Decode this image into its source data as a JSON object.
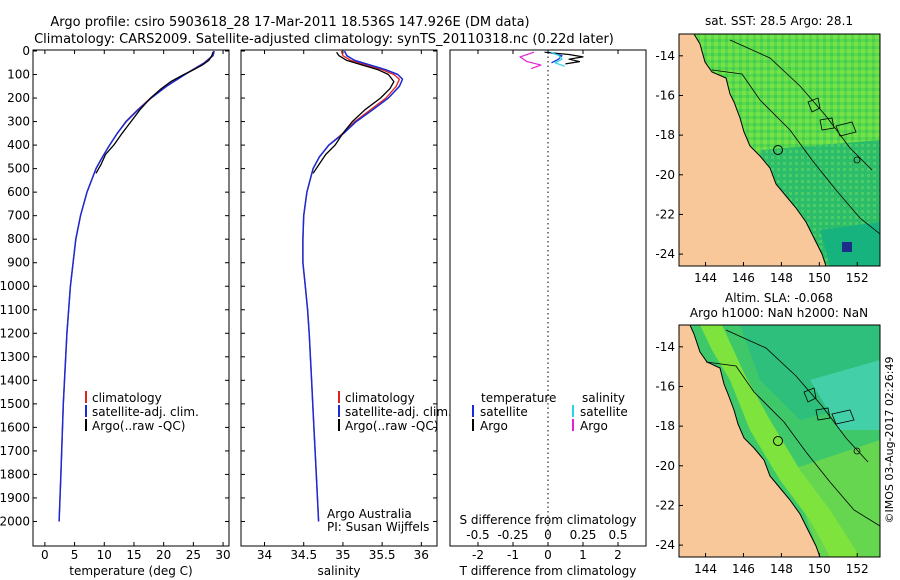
{
  "header": {
    "title_line1": "Argo profile: csiro 5903618_28 17-Mar-2011 18.536S 147.926E (DM data)",
    "title_line2": "Climatology: CARS2009. Satellite-adjusted climatology: synTS_20110318.nc (0.22d later)"
  },
  "footer": {
    "stamp": "©IMOS 03-Aug-2017 02:26:49"
  },
  "colors": {
    "clim": "#e0221e",
    "sat": "#1a2bd6",
    "argo": "#000000",
    "sat_sal": "#25d7e8",
    "argo_sal": "#e620d8",
    "land": "#f8c89a",
    "sea_dark": "#18b860",
    "sea_light": "#66e048",
    "coastline": "#000000"
  },
  "chart_data": [
    {
      "id": "temperature",
      "type": "line",
      "xlabel": "temperature (deg C)",
      "ylabel": "",
      "xlim": [
        -2,
        31
      ],
      "ylim": [
        2100,
        0
      ],
      "xticks": [
        0,
        5,
        10,
        15,
        20,
        25,
        30
      ],
      "yticks": [
        0,
        100,
        200,
        300,
        400,
        500,
        600,
        700,
        800,
        900,
        1000,
        1100,
        1200,
        1300,
        1400,
        1500,
        1600,
        1700,
        1800,
        1900,
        2000
      ],
      "legend": [
        "climatology",
        "satellite-adj. clim.",
        "Argo(..raw -QC)"
      ],
      "series": [
        {
          "name": "climatology",
          "color": "#e0221e",
          "width": 1.3,
          "depth": [
            0,
            20,
            50,
            100,
            150,
            200,
            250,
            300,
            350,
            400,
            450,
            500,
            600,
            700,
            800,
            1000,
            1200,
            1500,
            1800,
            2000
          ],
          "values": [
            28.4,
            28.2,
            26.8,
            23.5,
            20.4,
            17.8,
            15.6,
            13.6,
            12.2,
            10.9,
            9.7,
            8.6,
            7.1,
            6.0,
            5.2,
            4.3,
            3.7,
            3.1,
            2.7,
            2.4
          ]
        },
        {
          "name": "satellite-adj. clim.",
          "color": "#1a2bd6",
          "width": 1.5,
          "depth": [
            0,
            20,
            50,
            100,
            150,
            200,
            250,
            300,
            350,
            400,
            450,
            500,
            600,
            700,
            800,
            1000,
            1200,
            1500,
            1800,
            2000
          ],
          "values": [
            28.5,
            28.3,
            26.9,
            23.6,
            20.5,
            17.9,
            15.7,
            13.7,
            12.2,
            10.9,
            9.7,
            8.6,
            7.1,
            6.0,
            5.2,
            4.3,
            3.7,
            3.1,
            2.7,
            2.4
          ]
        },
        {
          "name": "Argo(..raw -QC)",
          "color": "#000000",
          "width": 1.3,
          "depth": [
            5,
            20,
            40,
            60,
            80,
            100,
            130,
            160,
            200,
            250,
            300,
            350,
            400,
            440,
            480,
            520
          ],
          "values": [
            28.3,
            28.1,
            27.6,
            26.5,
            25.0,
            23.4,
            21.2,
            19.6,
            17.8,
            16.0,
            14.5,
            13.0,
            11.6,
            10.2,
            9.5,
            8.6
          ]
        }
      ]
    },
    {
      "id": "salinity",
      "type": "line",
      "xlabel": "salinity",
      "xlim": [
        33.7,
        36.2
      ],
      "ylim": [
        2100,
        0
      ],
      "xticks": [
        34,
        34.5,
        35,
        35.5,
        36
      ],
      "legend": [
        "climatology",
        "satellite-adj. clim.",
        "Argo(..raw -QC)"
      ],
      "annotation_line1": "Argo Australia",
      "annotation_line2": "PI: Susan Wijffels",
      "series": [
        {
          "name": "climatology",
          "color": "#e0221e",
          "width": 1.3,
          "depth": [
            0,
            20,
            40,
            60,
            80,
            100,
            120,
            150,
            200,
            250,
            300,
            350,
            400,
            450,
            500,
            600,
            700,
            800,
            900,
            1000,
            1100,
            1200,
            1400,
            1600,
            1800,
            2000
          ],
          "values": [
            34.98,
            35.0,
            35.1,
            35.3,
            35.5,
            35.65,
            35.72,
            35.68,
            35.55,
            35.35,
            35.15,
            35.0,
            34.82,
            34.7,
            34.62,
            34.54,
            34.5,
            34.49,
            34.49,
            34.52,
            34.55,
            34.57,
            34.6,
            34.63,
            34.66,
            34.69
          ]
        },
        {
          "name": "satellite-adj. clim.",
          "color": "#1a2bd6",
          "width": 1.5,
          "depth": [
            0,
            20,
            40,
            60,
            80,
            100,
            120,
            150,
            200,
            250,
            300,
            350,
            400,
            450,
            500,
            600,
            700,
            800,
            900,
            1000,
            1100,
            1200,
            1400,
            1600,
            1800,
            2000
          ],
          "values": [
            35.02,
            35.05,
            35.15,
            35.35,
            35.55,
            35.7,
            35.76,
            35.72,
            35.58,
            35.38,
            35.17,
            35.01,
            34.82,
            34.7,
            34.62,
            34.54,
            34.5,
            34.49,
            34.49,
            34.52,
            34.55,
            34.57,
            34.6,
            34.63,
            34.66,
            34.69
          ]
        },
        {
          "name": "Argo(..raw -QC)",
          "color": "#000000",
          "width": 1.3,
          "depth": [
            5,
            20,
            40,
            60,
            80,
            100,
            130,
            160,
            200,
            250,
            300,
            350,
            400,
            440,
            480,
            520
          ],
          "values": [
            34.92,
            34.95,
            35.05,
            35.25,
            35.45,
            35.58,
            35.65,
            35.6,
            35.48,
            35.28,
            35.12,
            35.0,
            34.9,
            34.78,
            34.7,
            34.62
          ]
        }
      ]
    },
    {
      "id": "difference",
      "type": "line",
      "xlabel_top": "S difference from climatology",
      "xlabel_bottom": "T difference from climatology",
      "xlim": [
        -2.8,
        2.8
      ],
      "ylim": [
        2100,
        0
      ],
      "s_ticks": [
        -0.5,
        -0.25,
        0,
        0.25,
        0.5
      ],
      "s_tick_labels": [
        "-0.5",
        "-0.25",
        "0",
        "0.25",
        "0.5"
      ],
      "s_scale": 4,
      "t_ticks": [
        -2,
        -1,
        0,
        1,
        2
      ],
      "legend_temperature": "temperature",
      "legend_salinity": "salinity",
      "legend_satellite": "satellite",
      "legend_argo": "Argo",
      "series": [
        {
          "name": "T satellite",
          "color": "#1a2bd6",
          "width": 1.2,
          "depth": [
            5,
            20,
            35,
            50
          ],
          "values": [
            0.0,
            0.4,
            0.3,
            0.1
          ]
        },
        {
          "name": "T Argo",
          "color": "#000000",
          "width": 1.2,
          "depth": [
            5,
            15,
            25,
            35,
            45,
            55
          ],
          "values": [
            -0.1,
            0.6,
            1.0,
            0.6,
            0.9,
            0.5
          ]
        },
        {
          "name": "S satellite",
          "color": "#25d7e8",
          "width": 1.2,
          "depth": [
            5,
            20,
            35,
            50,
            65
          ],
          "values": [
            0.02,
            0.08,
            0.1,
            0.05,
            0.12
          ]
        },
        {
          "name": "S Argo",
          "color": "#e620d8",
          "width": 1.2,
          "depth": [
            5,
            25,
            45,
            60,
            75
          ],
          "values": [
            -0.1,
            -0.2,
            -0.15,
            -0.05,
            -0.12
          ]
        }
      ]
    },
    {
      "id": "sst_map",
      "type": "heatmap",
      "title": "sat. SST: 28.5 Argo: 28.1",
      "x_ticks": [
        144,
        146,
        148,
        150,
        152
      ],
      "y_ticks": [
        -14,
        -16,
        -18,
        -20,
        -22,
        -24
      ],
      "xlim": [
        142.6,
        153.2
      ],
      "ylim": [
        -24.6,
        -12.9
      ],
      "float_position": {
        "lon": 147.926,
        "lat": -18.536
      }
    },
    {
      "id": "sla_map",
      "type": "heatmap",
      "title_line1": "Altim. SLA: -0.068",
      "title_line2": "Argo h1000: NaN h2000: NaN",
      "x_ticks": [
        144,
        146,
        148,
        150,
        152
      ],
      "y_ticks": [
        -14,
        -16,
        -18,
        -20,
        -22,
        -24
      ],
      "xlim": [
        142.6,
        153.2
      ],
      "ylim": [
        -24.6,
        -12.9
      ],
      "float_position": {
        "lon": 147.926,
        "lat": -18.536
      }
    }
  ]
}
